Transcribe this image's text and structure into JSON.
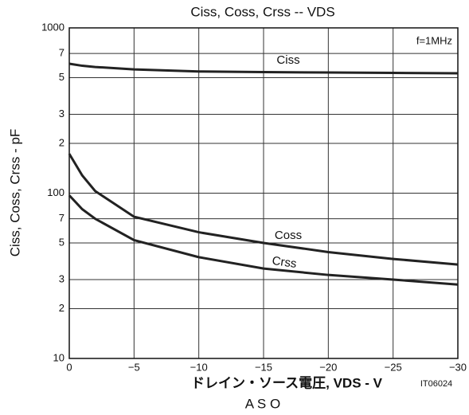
{
  "chart_data": {
    "type": "line",
    "title": "Ciss, Coss, Crss -- VDS",
    "x_label": "ドレイン・ソース電圧, VDS - V",
    "y_label": "Ciss, Coss, Crss - pF",
    "annotation": "f=1MHz",
    "figure_id": "IT06024",
    "footer_text": "A S O",
    "x": [
      0,
      -1,
      -2,
      -5,
      -10,
      -15,
      -20,
      -25,
      -30
    ],
    "series": [
      {
        "name": "Ciss",
        "color": "#222222",
        "values": [
          607,
          590,
          580,
          561,
          545,
          540,
          537,
          534,
          531
        ]
      },
      {
        "name": "Coss",
        "color": "#222222",
        "values": [
          173,
          128,
          103,
          72,
          58,
          50,
          44,
          40,
          37
        ]
      },
      {
        "name": "Crss",
        "color": "#222222",
        "values": [
          97,
          80,
          70,
          52,
          41,
          35,
          32,
          30,
          28
        ]
      }
    ],
    "xlim": [
      0,
      -30
    ],
    "xticks": [
      0,
      {
        "value": -5,
        "label": "−5"
      },
      {
        "value": -10,
        "label": "−10"
      },
      {
        "value": -15,
        "label": "−15"
      },
      {
        "value": -20,
        "label": "−20"
      },
      {
        "value": -25,
        "label": "−25"
      },
      {
        "value": -30,
        "label": "−30"
      }
    ],
    "ylim": [
      10,
      1000
    ],
    "log_y": true,
    "yticks": [
      10,
      {
        "value": 20,
        "label": "2"
      },
      {
        "value": 30,
        "label": "3"
      },
      {
        "value": 50,
        "label": "5"
      },
      {
        "value": 70,
        "label": "7"
      },
      100,
      {
        "value": 200,
        "label": "2"
      },
      {
        "value": 300,
        "label": "3"
      },
      {
        "value": 500,
        "label": "5"
      },
      {
        "value": 700,
        "label": "7"
      },
      1000
    ],
    "grid": true
  }
}
